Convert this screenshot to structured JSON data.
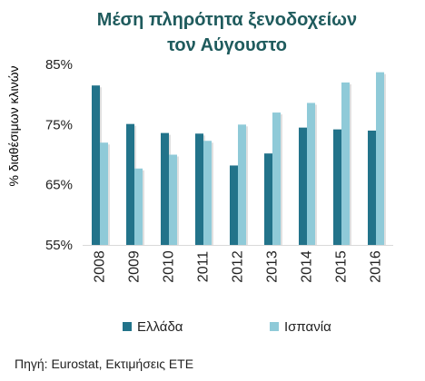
{
  "chart_data": {
    "type": "bar",
    "title_line1": "Μέση πληρότητα ξενοδοχείων",
    "title_line2": "τον Αύγουστο",
    "ylabel": "% διαθέσιμων κλινών",
    "xlabel": "",
    "categories": [
      "2008",
      "2009",
      "2010",
      "2011",
      "2012",
      "2013",
      "2014",
      "2015",
      "2016"
    ],
    "series": [
      {
        "name": "Ελλάδα",
        "color": "#22738a",
        "values": [
          81.5,
          75.1,
          73.6,
          73.5,
          68.2,
          70.2,
          74.5,
          74.2,
          74.0
        ]
      },
      {
        "name": "Ισπανία",
        "color": "#8fcad8",
        "values": [
          72.0,
          67.7,
          70.0,
          72.3,
          75.0,
          77.0,
          78.6,
          82.0,
          83.7
        ]
      }
    ],
    "ylim": [
      55,
      85
    ],
    "yticks": [
      55,
      65,
      75,
      85
    ],
    "ytick_labels": [
      "55%",
      "65%",
      "75%",
      "85%"
    ],
    "grid": false,
    "legend_position": "bottom"
  },
  "footer": {
    "source": "Πηγή: Eurostat, Εκτιμήσεις ΕΤΕ"
  }
}
